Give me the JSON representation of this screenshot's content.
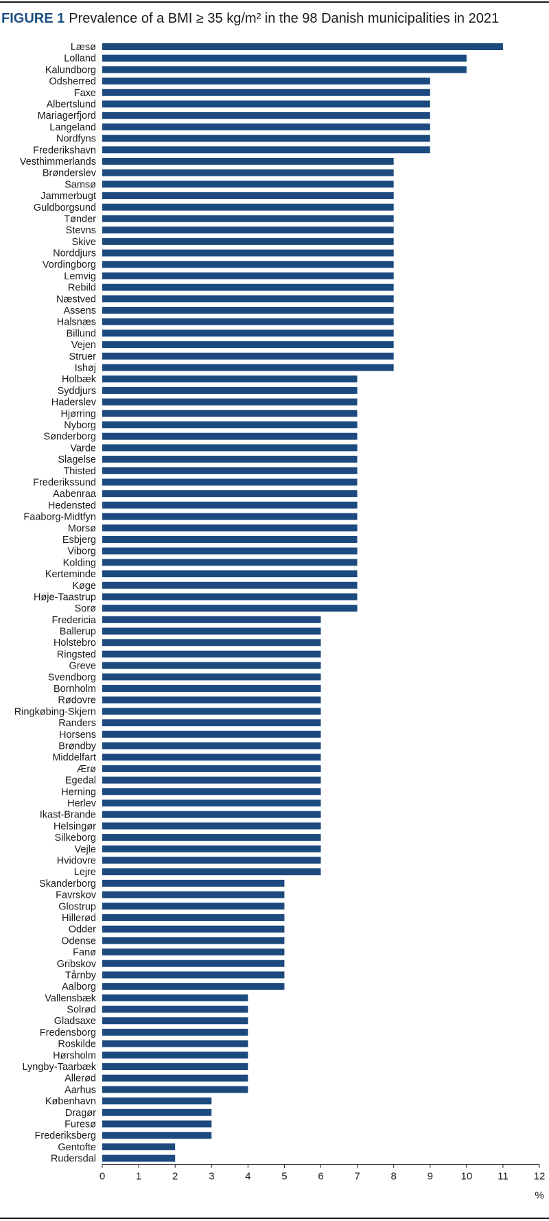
{
  "figure": {
    "label": "FIGURE 1",
    "caption": "Prevalence of a BMI ≥ 35 kg/m² in the 98 Danish municipalities in 2021"
  },
  "chart_data": {
    "type": "bar",
    "orientation": "horizontal",
    "title": "Prevalence of a BMI ≥ 35 kg/m² in the 98 Danish municipalities in 2021",
    "xlabel": "%",
    "ylabel": "",
    "xlim": [
      0,
      12
    ],
    "xticks": [
      "0",
      "1",
      "2",
      "3",
      "4",
      "5",
      "6",
      "7",
      "8",
      "9",
      "10",
      "11",
      "12"
    ],
    "grid": false,
    "bar_color": "#1c4a7e",
    "categories": [
      "Læsø",
      "Lolland",
      "Kalundborg",
      "Odsherred",
      "Faxe",
      "Albertslund",
      "Mariagerfjord",
      "Langeland",
      "Nordfyns",
      "Frederikshavn",
      "Vesthimmerlands",
      "Brønderslev",
      "Samsø",
      "Jammerbugt",
      "Guldborgsund",
      "Tønder",
      "Stevns",
      "Skive",
      "Norddjurs",
      "Vordingborg",
      "Lemvig",
      "Rebild",
      "Næstved",
      "Assens",
      "Halsnæs",
      "Billund",
      "Vejen",
      "Struer",
      "Ishøj",
      "Holbæk",
      "Syddjurs",
      "Haderslev",
      "Hjørring",
      "Nyborg",
      "Sønderborg",
      "Varde",
      "Slagelse",
      "Thisted",
      "Frederikssund",
      "Aabenraa",
      "Hedensted",
      "Faaborg-Midtfyn",
      "Morsø",
      "Esbjerg",
      "Viborg",
      "Kolding",
      "Kerteminde",
      "Køge",
      "Høje-Taastrup",
      "Sorø",
      "Fredericia",
      "Ballerup",
      "Holstebro",
      "Ringsted",
      "Greve",
      "Svendborg",
      "Bornholm",
      "Rødovre",
      "Ringkøbing-Skjern",
      "Randers",
      "Horsens",
      "Brøndby",
      "Middelfart",
      "Ærø",
      "Egedal",
      "Herning",
      "Herlev",
      "Ikast-Brande",
      "Helsingør",
      "Silkeborg",
      "Vejle",
      "Hvidovre",
      "Lejre",
      "Skanderborg",
      "Favrskov",
      "Glostrup",
      "Hillerød",
      "Odder",
      "Odense",
      "Fanø",
      "Gribskov",
      "Tårnby",
      "Aalborg",
      "Vallensbæk",
      "Solrød",
      "Gladsaxe",
      "Fredensborg",
      "Roskilde",
      "Hørsholm",
      "Lyngby-Taarbæk",
      "Allerød",
      "Aarhus",
      "København",
      "Dragør",
      "Furesø",
      "Frederiksberg",
      "Gentofte",
      "Rudersdal"
    ],
    "values": [
      11,
      10,
      10,
      9,
      9,
      9,
      9,
      9,
      9,
      9,
      8,
      8,
      8,
      8,
      8,
      8,
      8,
      8,
      8,
      8,
      8,
      8,
      8,
      8,
      8,
      8,
      8,
      8,
      8,
      7,
      7,
      7,
      7,
      7,
      7,
      7,
      7,
      7,
      7,
      7,
      7,
      7,
      7,
      7,
      7,
      7,
      7,
      7,
      7,
      7,
      6,
      6,
      6,
      6,
      6,
      6,
      6,
      6,
      6,
      6,
      6,
      6,
      6,
      6,
      6,
      6,
      6,
      6,
      6,
      6,
      6,
      6,
      6,
      5,
      5,
      5,
      5,
      5,
      5,
      5,
      5,
      5,
      5,
      4,
      4,
      4,
      4,
      4,
      4,
      4,
      4,
      4,
      3,
      3,
      3,
      3,
      2,
      2
    ]
  }
}
